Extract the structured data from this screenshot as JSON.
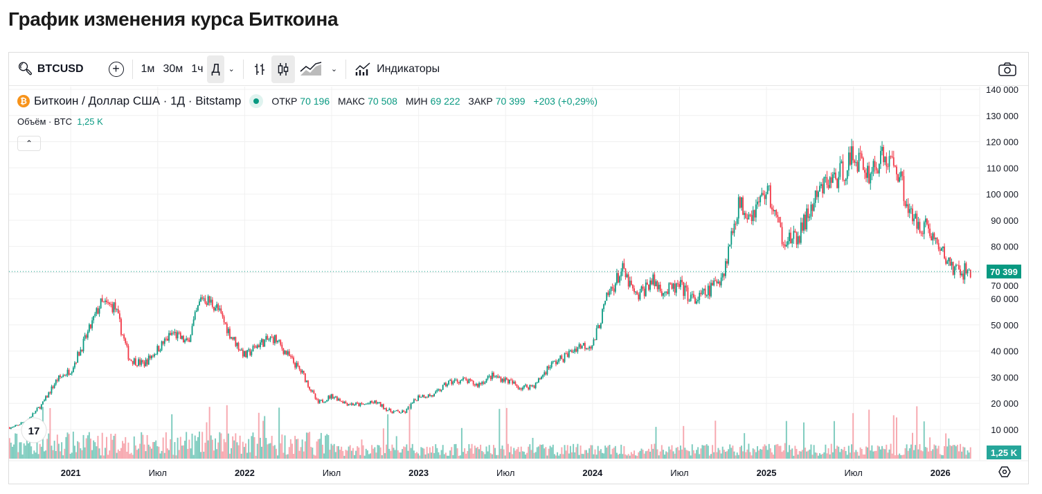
{
  "title": "График изменения курса Биткоина",
  "toolbar": {
    "symbol": "BTCUSD",
    "intervals": [
      "1м",
      "30м",
      "1ч",
      "Д"
    ],
    "active_interval": "Д",
    "indicators": "Индикаторы"
  },
  "legend": {
    "name": "Биткоин / Доллар США · 1Д · Bitstamp",
    "open_label": "ОТКР",
    "open": "70 196",
    "high_label": "МАКС",
    "high": "70 508",
    "low_label": "МИН",
    "low": "69 222",
    "close_label": "ЗАКР",
    "close": "70 399",
    "change": "+203 (+0,29%)",
    "volume_label": "Объём · BTC",
    "volume": "1,25 K"
  },
  "colors": {
    "up": "#089981",
    "down": "#f23645",
    "up_vol": "#7fccbf",
    "down_vol": "#f7a9b0"
  },
  "chart_data": {
    "type": "candlestick",
    "title": "Биткоин / Доллар США · 1Д · Bitstamp",
    "y_ticks": [
      10000,
      20000,
      30000,
      40000,
      50000,
      60000,
      70000,
      80000,
      90000,
      100000,
      110000,
      120000,
      130000,
      140000
    ],
    "y_tick_labels": [
      "10 000",
      "20 000",
      "30 000",
      "40 000",
      "50 000",
      "60 000",
      "70 000",
      "80 000",
      "90 000",
      "100 000",
      "110 000",
      "120 000",
      "130 000",
      "140 000"
    ],
    "ylim": [
      0,
      140000
    ],
    "x_ticks": [
      {
        "label": "2021",
        "t": 2021.0,
        "bold": true
      },
      {
        "label": "Июл",
        "t": 2021.5
      },
      {
        "label": "2022",
        "t": 2022.0,
        "bold": true
      },
      {
        "label": "Июл",
        "t": 2022.5
      },
      {
        "label": "2023",
        "t": 2023.0,
        "bold": true
      },
      {
        "label": "Июл",
        "t": 2023.5
      },
      {
        "label": "2024",
        "t": 2024.0,
        "bold": true
      },
      {
        "label": "Июл",
        "t": 2024.5
      },
      {
        "label": "2025",
        "t": 2025.0,
        "bold": true
      },
      {
        "label": "Июл",
        "t": 2025.5
      },
      {
        "label": "2026",
        "t": 2026.0,
        "bold": true
      }
    ],
    "xlim": [
      2020.645,
      2026.19
    ],
    "monthly_start": 2020.67,
    "monthly_close": [
      10800,
      13800,
      19700,
      29000,
      33000,
      45000,
      58000,
      57000,
      37000,
      35000,
      41000,
      47000,
      43000,
      61000,
      57000,
      46000,
      38000,
      43000,
      45000,
      38000,
      31000,
      20000,
      23000,
      20000,
      19400,
      20500,
      17000,
      16500,
      23000,
      23000,
      28000,
      29000,
      27000,
      30500,
      29000,
      26000,
      27000,
      34500,
      37700,
      42000,
      42500,
      61000,
      71000,
      60000,
      67000,
      62700,
      64600,
      59000,
      63000,
      70000,
      96000,
      93000,
      102000,
      84000,
      82000,
      94000,
      104000,
      107000,
      115000,
      108000,
      114000,
      110000,
      90000,
      88000,
      78000,
      70400
    ],
    "last_price": 70399,
    "last_price_label": "70 399",
    "last_volume_label": "1,25 K"
  }
}
